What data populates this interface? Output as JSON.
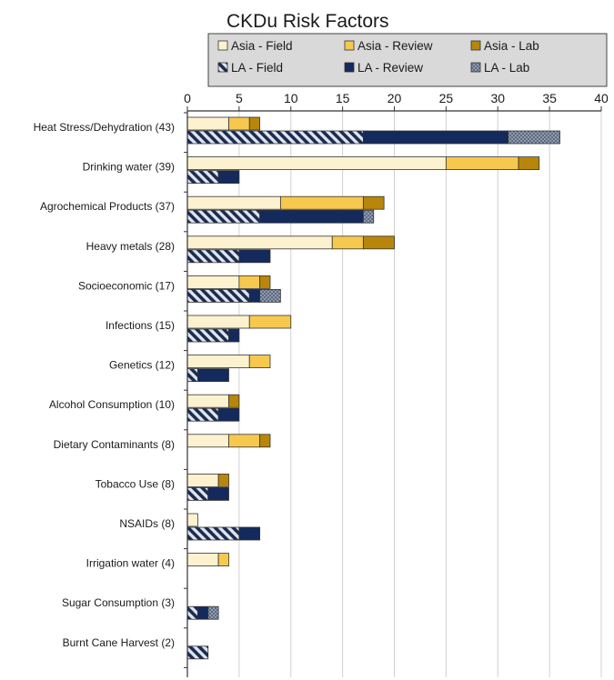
{
  "chart_data": {
    "type": "bar",
    "orientation": "horizontal",
    "stacked": true,
    "title": "CKDu Risk Factors",
    "xlim": [
      0,
      40
    ],
    "xticks": [
      0,
      5,
      10,
      15,
      20,
      25,
      30,
      35,
      40
    ],
    "grid": true,
    "legend_position": "top",
    "categories": [
      "Heat Stress/Dehydration (43)",
      "Drinking water (39)",
      "Agrochemical Products (37)",
      "Heavy metals (28)",
      "Socioeconomic (17)",
      "Infections (15)",
      "Genetics (12)",
      "Alcohol Consumption (10)",
      "Dietary Contaminants (8)",
      "Tobacco Use (8)",
      "NSAIDs (8)",
      "Irrigation water (4)",
      "Sugar Consumption (3)",
      "Burnt Cane  Harvest (2)"
    ],
    "groups": [
      {
        "region": "Asia",
        "series": [
          {
            "name": "Asia - Field",
            "color": "#fdf2cf",
            "pattern": "solid",
            "values": [
              4,
              25,
              9,
              14,
              5,
              6,
              6,
              4,
              4,
              3,
              1,
              3,
              0,
              0
            ]
          },
          {
            "name": "Asia - Review",
            "color": "#f6c94e",
            "pattern": "solid",
            "values": [
              2,
              7,
              8,
              3,
              2,
              4,
              2,
              0,
              3,
              0,
              0,
              1,
              0,
              0
            ]
          },
          {
            "name": "Asia - Lab",
            "color": "#b8860b",
            "pattern": "solid",
            "values": [
              1,
              2,
              2,
              3,
              1,
              0,
              0,
              1,
              1,
              1,
              0,
              0,
              0,
              0
            ]
          }
        ]
      },
      {
        "region": "LA",
        "series": [
          {
            "name": "LA - Field",
            "color": "#1c2c4f",
            "pattern": "hatch",
            "values": [
              17,
              3,
              7,
              5,
              6,
              4,
              1,
              3,
              0,
              2,
              5,
              0,
              1,
              2
            ]
          },
          {
            "name": "LA - Review",
            "color": "#14295c",
            "pattern": "solid",
            "values": [
              14,
              2,
              10,
              3,
              1,
              1,
              3,
              2,
              0,
              2,
              2,
              0,
              1,
              0
            ]
          },
          {
            "name": "LA - Lab",
            "color": "#7f8ba0",
            "pattern": "dots",
            "values": [
              5,
              0,
              1,
              0,
              2,
              0,
              0,
              0,
              0,
              0,
              0,
              0,
              1,
              0
            ]
          }
        ]
      }
    ]
  }
}
